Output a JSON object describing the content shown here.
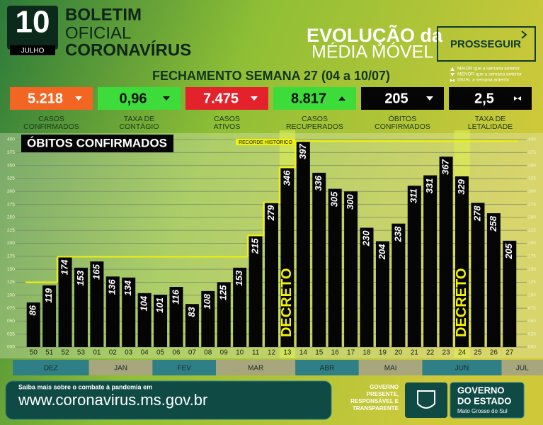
{
  "header": {
    "day": "10",
    "month": "JULHO",
    "line1": "BOLETIM",
    "line2": "OFICIAL",
    "line3": "CORONAVÍRUS",
    "evolution1": "EVOLUÇÃO da",
    "evolution2": "MÉDIA MÓVEL",
    "phase": "PROSSEGUIR",
    "week": "FECHAMENTO SEMANA 27 (04 a 10/07)"
  },
  "legend": [
    "MAIOR que a semana anterior",
    "MENOR que a semana anterior",
    "IGUAL a semana anterior"
  ],
  "kpis": [
    {
      "value": "5.218",
      "trend": "down",
      "color": "#f26522",
      "text_color": "#ffffff",
      "label": [
        "CASOS",
        "CONFIRMADOS"
      ]
    },
    {
      "value": "0,96",
      "trend": "down",
      "color": "#3ddc3a",
      "text_color": "#111111",
      "label": [
        "TAXA DE",
        "CONTÁGIO"
      ]
    },
    {
      "value": "7.475",
      "trend": "down",
      "color": "#e3222b",
      "text_color": "#ffffff",
      "label": [
        "CASOS",
        "ATIVOS"
      ]
    },
    {
      "value": "8.817",
      "trend": "up",
      "color": "#3ddc3a",
      "text_color": "#111111",
      "label": [
        "CASOS",
        "RECUPERADOS"
      ]
    },
    {
      "value": "205",
      "trend": "down",
      "color": "#050505",
      "text_color": "#ffffff",
      "label": [
        "ÓBITOS",
        "CONFIRMADOS"
      ]
    },
    {
      "value": "2,5",
      "trend": "equal",
      "color": "#050505",
      "text_color": "#ffffff",
      "label": [
        "TAXA DE",
        "LETALIDADE"
      ]
    }
  ],
  "chart_data": {
    "type": "bar",
    "title": "ÓBITOS CONFIRMADOS",
    "categories": [
      "50",
      "51",
      "52",
      "53",
      "01",
      "02",
      "03",
      "04",
      "05",
      "06",
      "07",
      "08",
      "09",
      "10",
      "11",
      "12",
      "13",
      "14",
      "15",
      "16",
      "17",
      "18",
      "19",
      "20",
      "21",
      "22",
      "23",
      "24",
      "25",
      "26",
      "27"
    ],
    "values": [
      86,
      119,
      174,
      153,
      165,
      136,
      134,
      104,
      101,
      116,
      83,
      108,
      125,
      153,
      215,
      279,
      346,
      397,
      336,
      305,
      300,
      230,
      204,
      238,
      311,
      331,
      367,
      329,
      278,
      258,
      205
    ],
    "color": "#050505",
    "ylim": [
      0,
      400
    ],
    "yticks": [
      {
        "value": 0,
        "label": "000"
      },
      {
        "value": 25,
        "label": "025"
      },
      {
        "value": 50,
        "label": "050"
      },
      {
        "value": 75,
        "label": "075"
      },
      100,
      125,
      150,
      175,
      200,
      225,
      250,
      275,
      300,
      325,
      350,
      375,
      400
    ],
    "grid": true,
    "record_line": {
      "label": "RECORDE HISTÓRICO",
      "color": "#f2f20a",
      "values": [
        125,
        125,
        174,
        174,
        174,
        174,
        174,
        174,
        174,
        174,
        174,
        174,
        174,
        174,
        215,
        279,
        346,
        397,
        397,
        397,
        397,
        397,
        397,
        397,
        397,
        397,
        397,
        397,
        397,
        397,
        397
      ]
    },
    "annotations": [
      {
        "label": "DECRETO",
        "category": "13"
      },
      {
        "label": "DECRETO",
        "category": "24"
      }
    ],
    "months": [
      "DEZ",
      "JAN",
      "FEV",
      "MAR",
      "ABR",
      "MAI",
      "JUN",
      "JUL"
    ]
  },
  "footer": {
    "info": "Saiba mais sobre o combate à pandemia em",
    "url": "www.coronavirus.ms.gov.br",
    "motto": [
      "GOVERNO",
      "PRESENTE,",
      "RESPONSÁVEL E",
      "TRANSPARENTE"
    ],
    "gov1": "GOVERNO",
    "gov2": "DO ESTADO",
    "state": "Mato Grosso do Sul"
  }
}
